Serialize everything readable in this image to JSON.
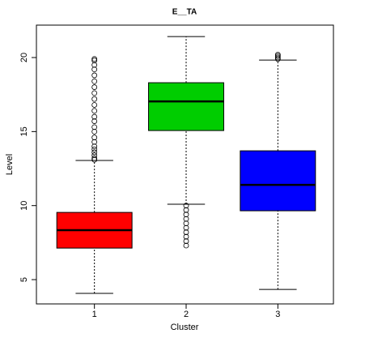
{
  "chart_data": {
    "type": "boxplot",
    "title": "E__TA",
    "x_label": "Cluster",
    "y_label": "Level",
    "categories": [
      "1",
      "2",
      "3"
    ],
    "boxes": [
      {
        "color": "#ff0000",
        "whisker_low": 4.07,
        "q1": 7.13,
        "median": 8.34,
        "q3": 9.54,
        "whisker_high": 13.05,
        "outliers": [
          13.1,
          13.2,
          13.4,
          13.6,
          13.8,
          14.0,
          14.3,
          14.6,
          15.0,
          15.3,
          15.7,
          16.0,
          16.4,
          16.8,
          17.2,
          17.6,
          18.0,
          18.4,
          18.8,
          19.2,
          19.5,
          19.8,
          19.9
        ]
      },
      {
        "color": "#00cd00",
        "whisker_low": 10.09,
        "q1": 15.07,
        "median": 17.04,
        "q3": 18.3,
        "whisker_high": 21.42,
        "outliers": [
          7.3,
          7.6,
          7.9,
          8.2,
          8.5,
          8.8,
          9.1,
          9.4,
          9.7,
          10.0
        ]
      },
      {
        "color": "#0000ff",
        "whisker_low": 4.34,
        "q1": 9.65,
        "median": 11.4,
        "q3": 13.7,
        "whisker_high": 19.83,
        "outliers": [
          19.9,
          20.0,
          20.1,
          20.2
        ]
      }
    ],
    "ylim": [
      3.36,
      22.19
    ],
    "yticks": [
      5,
      10,
      15,
      20
    ]
  }
}
